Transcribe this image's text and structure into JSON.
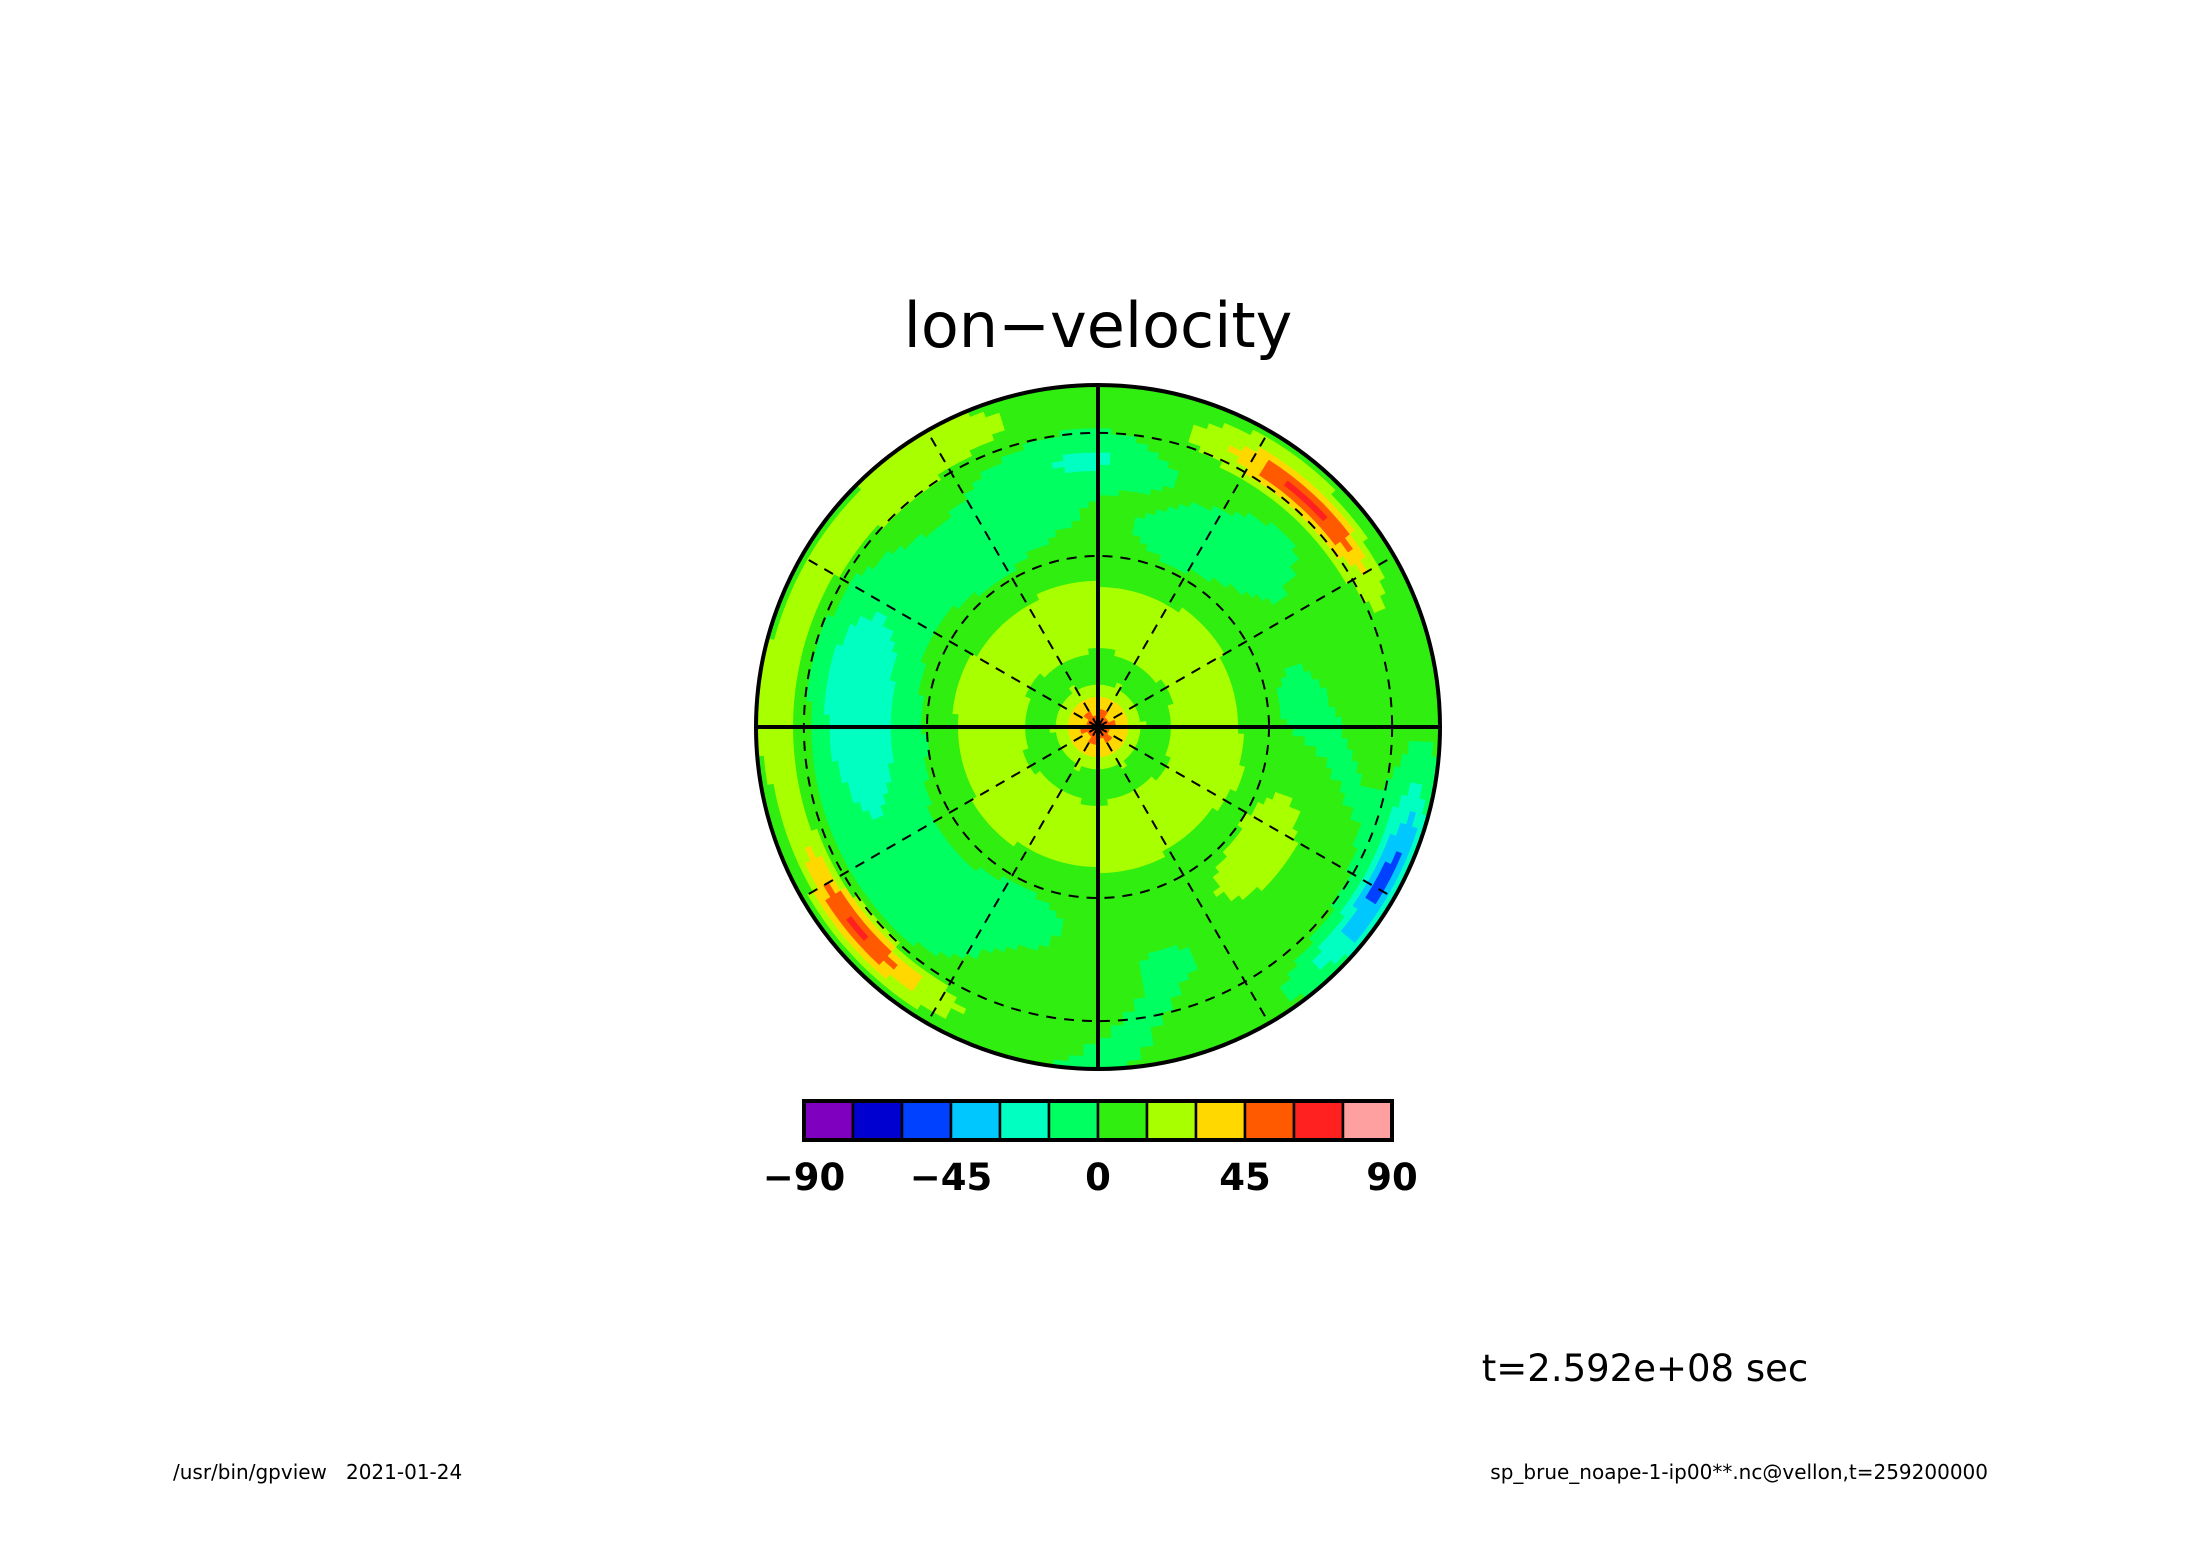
{
  "chart_data": {
    "type": "heatmap",
    "projection": "polar stereographic",
    "title": "lon−velocity",
    "colorbar": {
      "levels": [
        -90,
        -75,
        -60,
        -45,
        -30,
        -15,
        0,
        15,
        30,
        45,
        60,
        75,
        90
      ],
      "colors": [
        "#7f00bf",
        "#0000d0",
        "#0040ff",
        "#00c8ff",
        "#00ffc0",
        "#00ff60",
        "#30ee10",
        "#a8ff00",
        "#ffd800",
        "#ff5a00",
        "#ff2020",
        "#ffa0a0"
      ],
      "tick_labels": [
        "−90",
        "−45",
        "0",
        "45",
        "90"
      ],
      "tick_values": [
        -90,
        -45,
        0,
        45,
        90
      ]
    },
    "field": {
      "value_range": [
        -45,
        75
      ],
      "features": [
        {
          "region": "pole",
          "value": 52
        },
        {
          "region": "inner ring",
          "value": 22
        },
        {
          "region": "mid ring",
          "value": 5
        },
        {
          "region": "outer band left",
          "value": -20
        },
        {
          "region": "upper-right rim",
          "value": 65
        },
        {
          "region": "lower-left rim",
          "value": 62
        },
        {
          "region": "right edge",
          "value": -40
        }
      ]
    },
    "time_label": "t=2.592e+08 sec",
    "grid": "dashed lat/lon lines"
  },
  "footer": {
    "left": "/usr/bin/gpview   2021-01-24",
    "right": "sp_brue_noape-1-ip00**.nc@vellon,t=259200000"
  }
}
